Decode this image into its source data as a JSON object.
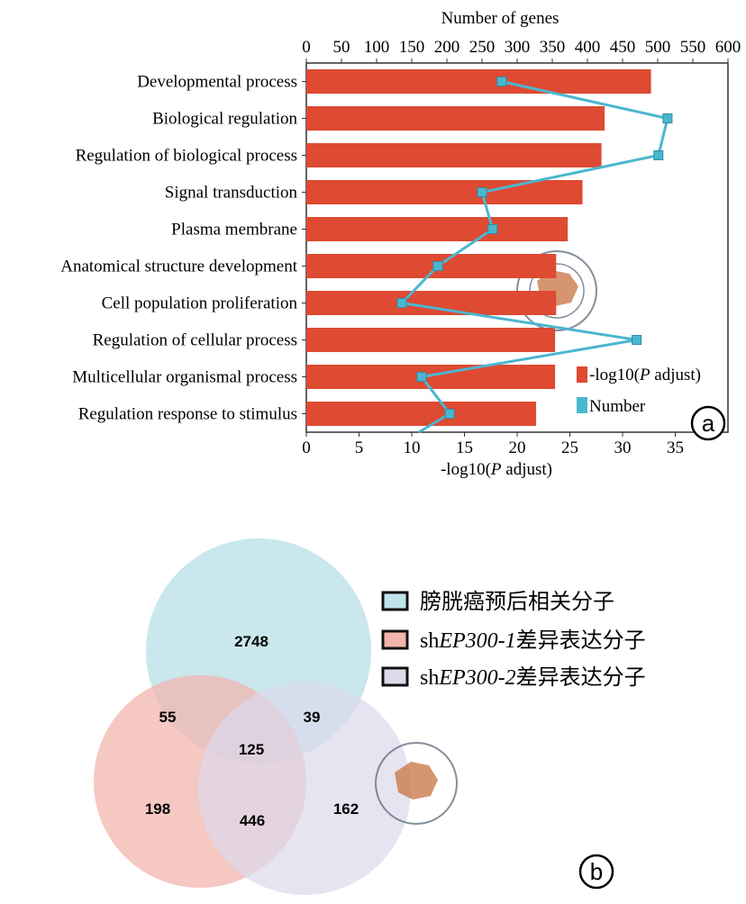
{
  "chart_data": [
    {
      "type": "bar",
      "orientation": "horizontal",
      "panel_label": "a",
      "categories": [
        "Developmental process",
        "Biological regulation",
        "Regulation of biological process",
        "Signal transduction",
        "Plasma membrane",
        "Anatomical structure development",
        "Cell population proliferation",
        "Regulation of cellular process",
        "Multicellular organismal process",
        "Regulation response to stimulus"
      ],
      "series": [
        {
          "name": "-log10(P adjust)",
          "type": "bar",
          "axis": "bottom",
          "color": "#de4a32",
          "values": [
            32.7,
            28.3,
            28.0,
            26.2,
            24.8,
            23.7,
            23.7,
            23.6,
            23.6,
            21.8
          ]
        },
        {
          "name": "Number",
          "type": "line",
          "axis": "top",
          "color": "#4bb6d0",
          "values": [
            278,
            514,
            501,
            250,
            265,
            187,
            136,
            470,
            164,
            204
          ]
        }
      ],
      "bottom_axis": {
        "label_prefix": "-log10(",
        "label_italic": "P",
        "label_suffix": " adjust)",
        "range": [
          0,
          40
        ],
        "ticks": [
          "0",
          "5",
          "10",
          "15",
          "20",
          "25",
          "30",
          "35"
        ]
      },
      "top_axis": {
        "label": "Number of genes",
        "range": [
          0,
          600
        ],
        "ticks": [
          "0",
          "50",
          "100",
          "150",
          "200",
          "250",
          "300",
          "350",
          "400",
          "450",
          "500",
          "550",
          "600"
        ]
      },
      "legend": {
        "placement": "bottom-right",
        "bar_prefix": "-log10(",
        "bar_italic": "P",
        "bar_suffix": " adjust)",
        "line_label": "Number"
      }
    },
    {
      "type": "venn",
      "panel_label": "b",
      "sets": [
        {
          "name": "膀胱癌预后相关分子",
          "color": "#bfe3ea",
          "prefix": "",
          "italic": "",
          "suffix": "膀胱癌预后相关分子"
        },
        {
          "name": "shEP300-1差异表达分子",
          "color": "#f2b5ae",
          "prefix": "sh",
          "italic": "EP300-1",
          "suffix": "差异表达分子"
        },
        {
          "name": "shEP300-2差异表达分子",
          "color": "#dcd9eb",
          "prefix": "sh",
          "italic": "EP300-2",
          "suffix": "差异表达分子"
        }
      ],
      "regions": {
        "only_1": "2748",
        "1_and_2": "55",
        "1_and_3": "39",
        "all": "125",
        "only_2": "198",
        "2_and_3": "446",
        "only_3": "162"
      }
    }
  ]
}
